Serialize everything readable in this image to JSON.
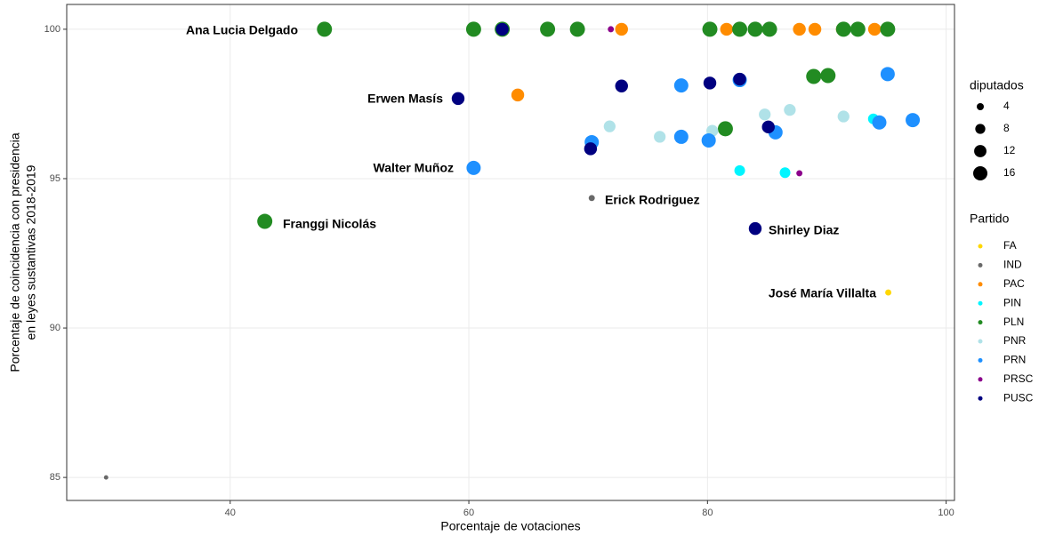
{
  "chart_data": {
    "type": "scatter",
    "xlabel": "Porcentaje de votaciones",
    "ylabel": [
      "Porcentaje de coincidencia con presidencia",
      "en leyes sustantivas 2018-2019"
    ],
    "xlim": [
      26.3,
      100.7
    ],
    "ylim": [
      84.23,
      100.83
    ],
    "xticks": [
      40,
      60,
      80,
      100
    ],
    "yticks": [
      85,
      90,
      95,
      100
    ],
    "grid": true,
    "size_legend_title": "diputados",
    "size_legend": [
      4,
      8,
      12,
      16
    ],
    "color_legend_title": "Partido",
    "annotations": [
      "Ana Lucia Delgado",
      "Erwen Masís",
      "Walter Muñoz",
      "Erick Rodriguez",
      "Franggi Nicolás",
      "Shirley Diaz",
      "José María Villalta"
    ],
    "series": [
      {
        "name": "FA",
        "color": "#ffd700",
        "x": [
          95.15
        ],
        "values": [
          91.19
        ],
        "sizes": [
          3
        ]
      },
      {
        "name": "IND",
        "color": "#696969",
        "x": [
          29.6,
          70.3
        ],
        "values": [
          85,
          94.35
        ],
        "sizes": [
          1.5,
          3
        ]
      },
      {
        "name": "PAC",
        "color": "#ff8c00",
        "x": [
          72.8,
          81.6,
          87.7,
          89.0,
          91.3,
          94.0,
          64.1
        ],
        "values": [
          100,
          100,
          100,
          100,
          100,
          100,
          97.8
        ],
        "sizes": [
          13,
          13,
          13,
          13,
          13,
          13,
          13
        ]
      },
      {
        "name": "PIN",
        "color": "#00f5ff",
        "x": [
          82.7,
          86.5,
          93.9
        ],
        "values": [
          95.27,
          95.2,
          97.0
        ],
        "sizes": [
          9,
          9,
          9
        ]
      },
      {
        "name": "PLN",
        "color": "#228b22",
        "x": [
          47.9,
          60.4,
          62.8,
          66.6,
          69.1,
          80.2,
          82.7,
          84.0,
          85.2,
          91.4,
          92.6,
          95.1,
          88.9,
          90.1,
          81.5,
          42.9
        ],
        "values": [
          100,
          100,
          100,
          100,
          100,
          100,
          100,
          100,
          100,
          100,
          100,
          100,
          98.42,
          98.45,
          96.67,
          93.57
        ],
        "sizes": [
          18,
          18,
          18,
          18,
          18,
          18,
          18,
          18,
          18,
          18,
          18,
          18,
          18,
          18,
          18,
          18
        ]
      },
      {
        "name": "PNR",
        "color": "#b0e2e8",
        "x": [
          71.8,
          76.0,
          80.4,
          84.8,
          86.9,
          91.4
        ],
        "values": [
          96.75,
          96.4,
          96.6,
          97.15,
          97.3,
          97.08
        ],
        "sizes": [
          11,
          11,
          11,
          11,
          11,
          11
        ]
      },
      {
        "name": "PRN",
        "color": "#1e90ff",
        "x": [
          60.4,
          70.3,
          77.8,
          80.1,
          85.7,
          77.8,
          82.7,
          95.1,
          97.2,
          94.4
        ],
        "values": [
          95.36,
          96.22,
          96.4,
          96.28,
          96.55,
          98.12,
          98.3,
          98.5,
          96.96,
          96.88
        ],
        "sizes": [
          16,
          16,
          16,
          16,
          16,
          16,
          16,
          16,
          16,
          16
        ]
      },
      {
        "name": "PRSC",
        "color": "#8b008b",
        "x": [
          71.9,
          87.7
        ],
        "values": [
          100,
          95.18
        ],
        "sizes": [
          3,
          3
        ]
      },
      {
        "name": "PUSC",
        "color": "#000080",
        "x": [
          62.8,
          59.1,
          72.8,
          80.2,
          82.7,
          70.2,
          85.1,
          84.0
        ],
        "values": [
          100,
          97.68,
          98.1,
          98.2,
          98.33,
          96.0,
          96.73,
          93.33
        ],
        "sizes": [
          13,
          13,
          13,
          13,
          13,
          13,
          13,
          13
        ]
      }
    ]
  }
}
